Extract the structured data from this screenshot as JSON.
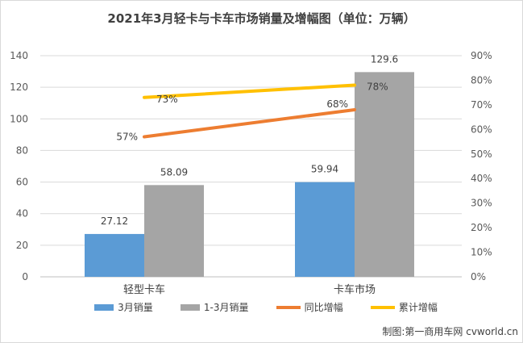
{
  "chart_data": {
    "type": "bar",
    "title": "2021年3月轻卡与卡车市场销量及增幅图（单位：万辆）",
    "categories": [
      "轻型卡车",
      "卡车市场"
    ],
    "series": [
      {
        "name": "3月销量",
        "kind": "bar",
        "axis": "left",
        "color": "#5b9bd5",
        "values": [
          27.12,
          59.94
        ],
        "labels": [
          "27.12",
          "59.94"
        ]
      },
      {
        "name": "1-3月销量",
        "kind": "bar",
        "axis": "left",
        "color": "#a5a5a5",
        "values": [
          58.09,
          129.6
        ],
        "labels": [
          "58.09",
          "129.6"
        ]
      },
      {
        "name": "同比增幅",
        "kind": "line",
        "axis": "right",
        "color": "#ed7d31",
        "values": [
          57,
          68
        ],
        "labels": [
          "57%",
          "68%"
        ]
      },
      {
        "name": "累计增幅",
        "kind": "line",
        "axis": "right",
        "color": "#ffc000",
        "values": [
          73,
          78
        ],
        "labels": [
          "73%",
          "78%"
        ]
      }
    ],
    "y_left": {
      "min": 0,
      "max": 140,
      "ticks": [
        "0",
        "20",
        "40",
        "60",
        "80",
        "100",
        "120",
        "140"
      ]
    },
    "y_right": {
      "min": 0,
      "max": 90,
      "ticks": [
        "0%",
        "10%",
        "20%",
        "30%",
        "40%",
        "50%",
        "60%",
        "70%",
        "80%",
        "90%"
      ]
    },
    "grid": true,
    "legend_position": "bottom"
  },
  "credit": "制图:第一商用车网 cvworld.cn"
}
